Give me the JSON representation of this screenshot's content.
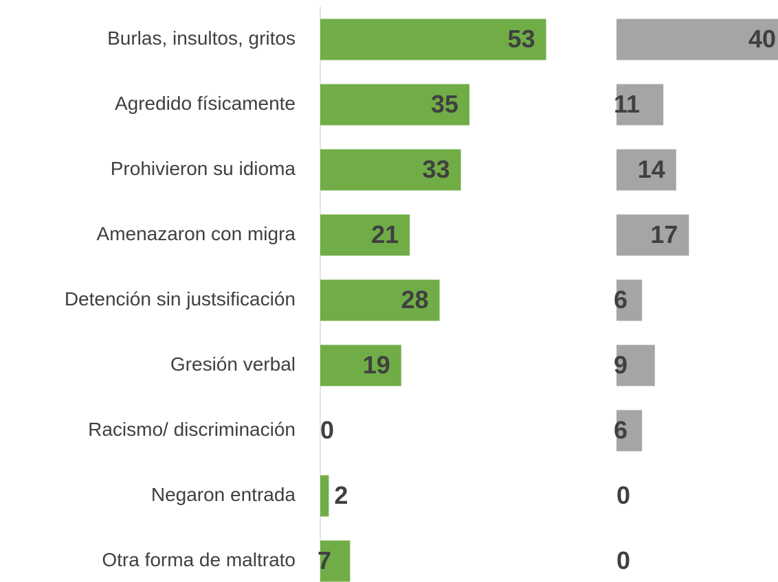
{
  "chart_data": {
    "type": "bar",
    "orientation": "horizontal",
    "categories": [
      "Burlas, insultos, gritos",
      "Agredido físicamente",
      "Prohivieron su idioma",
      "Amenazaron con migra",
      "Detención sin justsificación",
      "Gresión verbal",
      "Racismo/ discriminación",
      "Negaron entrada",
      "Otra forma de maltrato"
    ],
    "series": [
      {
        "color": "#70ad47",
        "values": [
          53,
          35,
          33,
          21,
          28,
          19,
          0,
          2,
          7
        ]
      },
      {
        "color": "#a5a5a5",
        "values": [
          40,
          11,
          14,
          17,
          6,
          9,
          6,
          0,
          0
        ]
      }
    ]
  }
}
